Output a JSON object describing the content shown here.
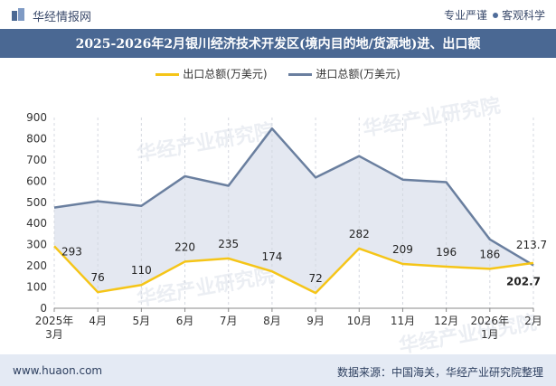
{
  "header": {
    "brand": "华经情报网",
    "slogan_left": "专业严谨",
    "slogan_right": "客观科学"
  },
  "title": "2025-2026年2月银川经济技术开发区(境内目的地/货源地)进、出口额",
  "footer": {
    "site": "www.huaon.com",
    "source": "数据来源：中国海关，华经产业研究院整理"
  },
  "watermark": "华经产业研究院",
  "colors": {
    "export": "#f5c518",
    "import": "#6a7f9f",
    "fill": "#e4e8f1",
    "title_bg": "#4a6893"
  },
  "chart_data": {
    "type": "line",
    "categories": [
      "2025年\n3月",
      "4月",
      "5月",
      "6月",
      "7月",
      "8月",
      "9月",
      "10月",
      "11月",
      "12月",
      "2026年\n1月",
      "2月"
    ],
    "series": [
      {
        "name": "出口总额(万美元)",
        "values": [
          293,
          76,
          110,
          220,
          235,
          174,
          72,
          282,
          209,
          196,
          186,
          213.7
        ]
      },
      {
        "name": "进口总额(万美元)",
        "values": [
          475,
          505,
          483,
          623,
          578,
          848,
          617,
          718,
          607,
          595,
          325,
          202.7
        ]
      }
    ],
    "data_labels": [
      "293",
      "76",
      "110",
      "220",
      "235",
      "174",
      "72",
      "282",
      "209",
      "196",
      "186",
      "213.7"
    ],
    "import_last_label": "202.7",
    "ylim": [
      0,
      900
    ],
    "yticks": [
      0,
      100,
      200,
      300,
      400,
      500,
      600,
      700,
      800,
      900
    ],
    "legend_position": "top"
  }
}
